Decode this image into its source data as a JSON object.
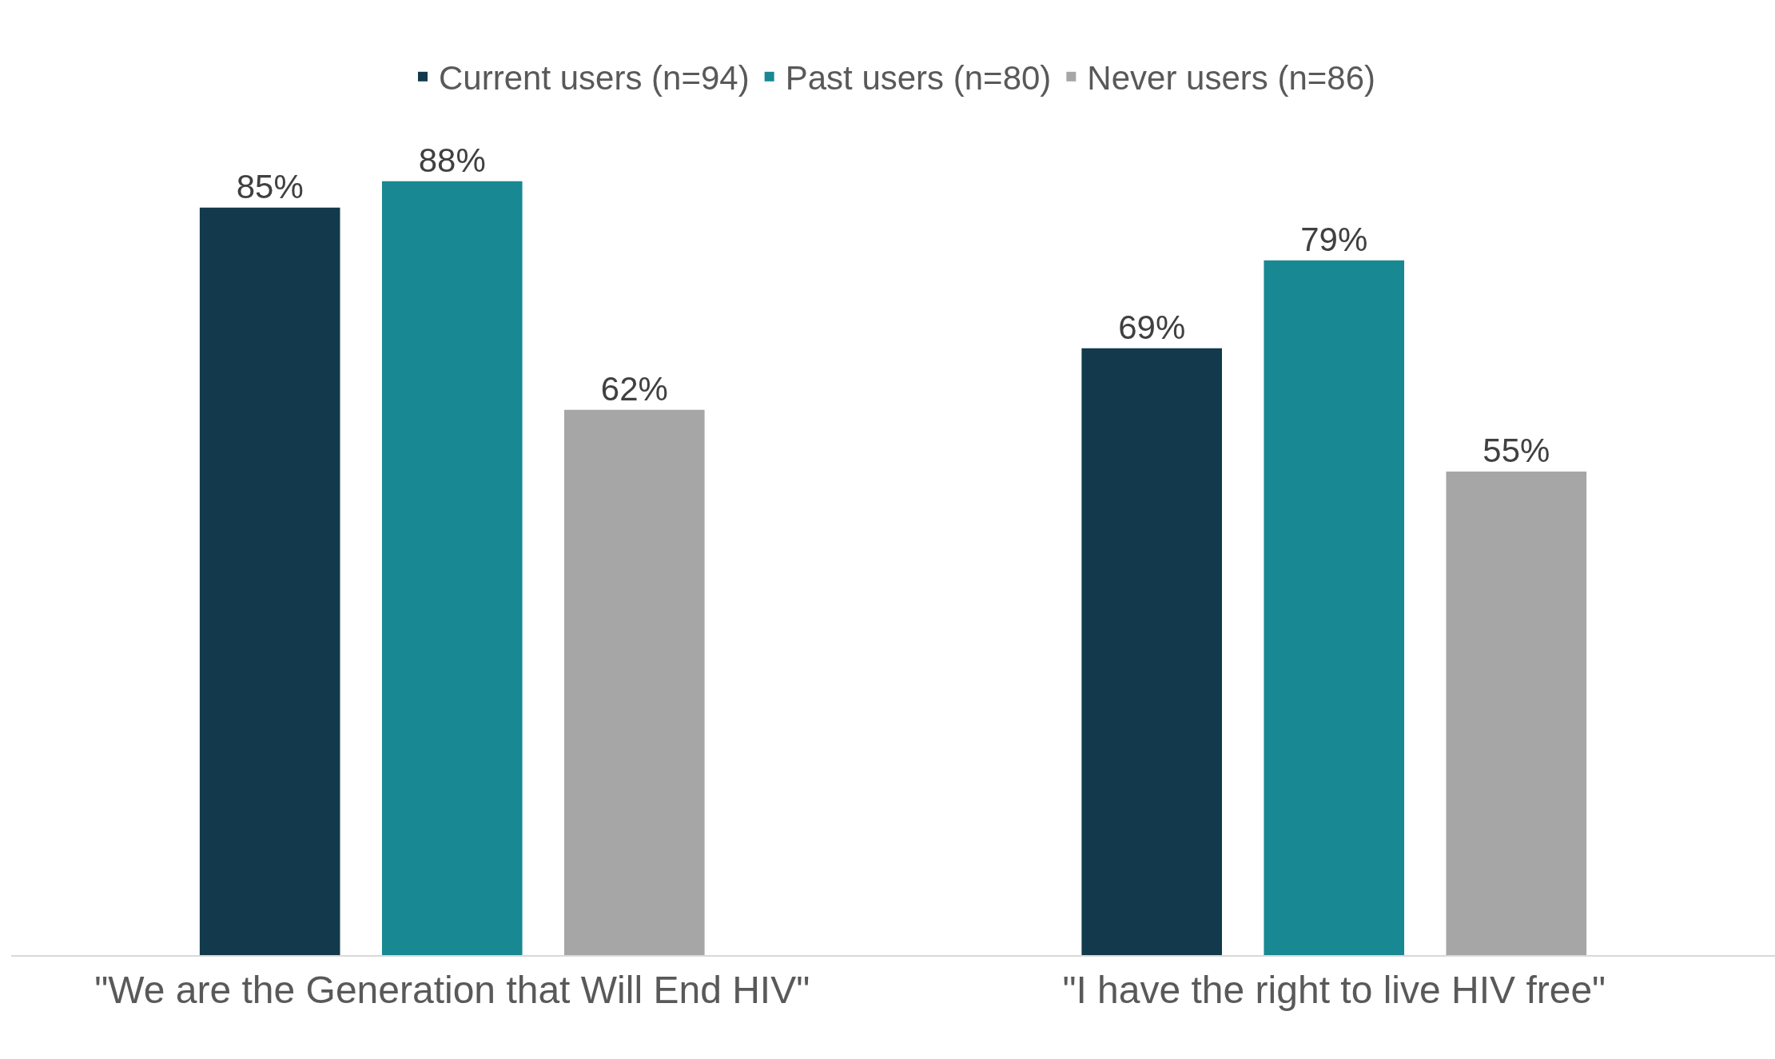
{
  "chart_data": {
    "type": "bar",
    "categories": [
      "\"We are the Generation that Will End HIV\"",
      "\"I have the right to live HIV free\""
    ],
    "series": [
      {
        "name": "Current users (n=94)",
        "color": "#12394c",
        "values": [
          85,
          69
        ],
        "value_labels": [
          "85%",
          "69%"
        ]
      },
      {
        "name": "Past users (n=80)",
        "color": "#188892",
        "values": [
          88,
          79
        ],
        "value_labels": [
          "88%",
          "79%"
        ]
      },
      {
        "name": "Never users (n=86)",
        "color": "#a6a6a6",
        "values": [
          62,
          55
        ],
        "value_labels": [
          "62%",
          "55%"
        ]
      }
    ],
    "legend": "top",
    "tick_labels": "x"
  }
}
